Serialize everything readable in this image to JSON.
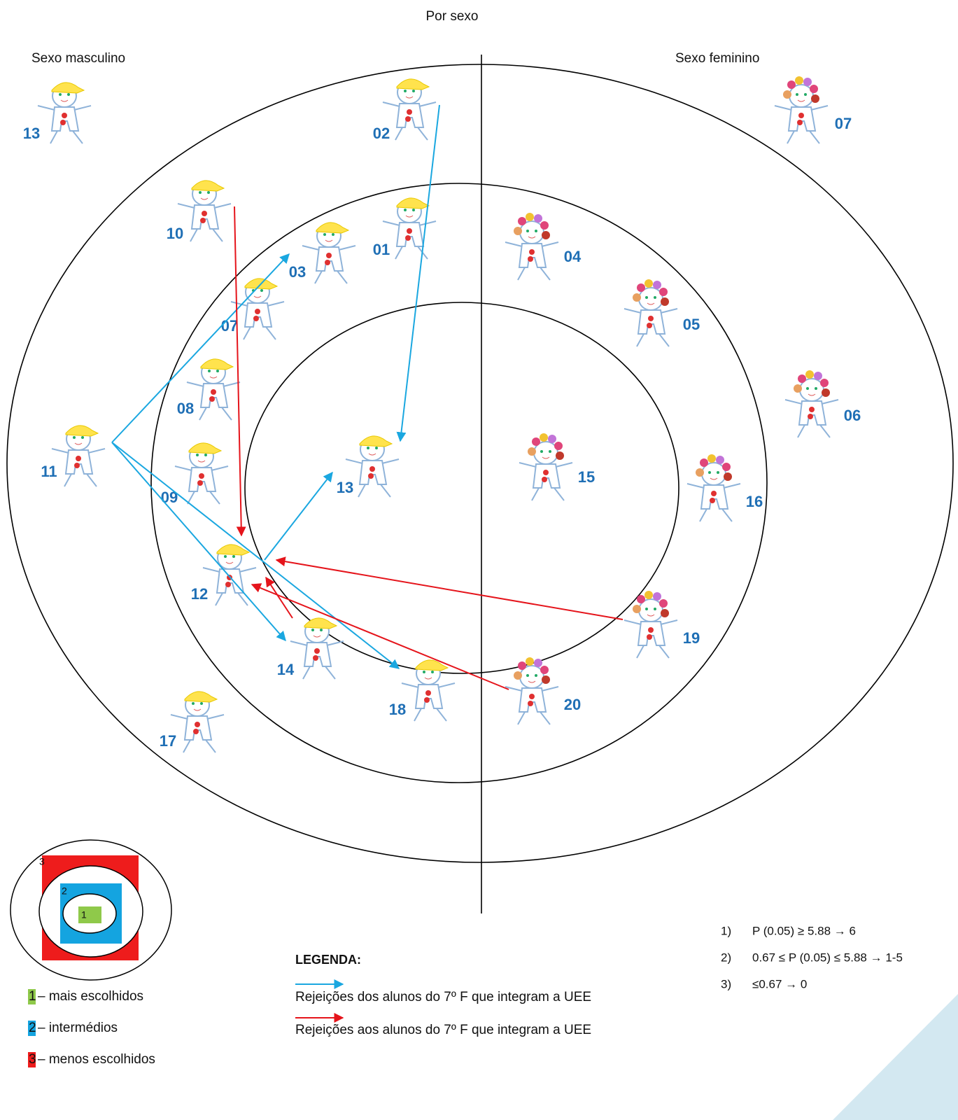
{
  "header": {
    "title": "Por sexo",
    "left": "Sexo masculino",
    "right": "Sexo feminino"
  },
  "nodes": [
    {
      "label": "13"
    },
    {
      "label": "02"
    },
    {
      "label": "10"
    },
    {
      "label": "03"
    },
    {
      "label": "01"
    },
    {
      "label": "07"
    },
    {
      "label": "08"
    },
    {
      "label": "11"
    },
    {
      "label": "09"
    },
    {
      "label": "13"
    },
    {
      "label": "12"
    },
    {
      "label": "14"
    },
    {
      "label": "18"
    },
    {
      "label": "17"
    },
    {
      "label": "07"
    },
    {
      "label": "04"
    },
    {
      "label": "05"
    },
    {
      "label": "06"
    },
    {
      "label": "15"
    },
    {
      "label": "16"
    },
    {
      "label": "19"
    },
    {
      "label": "20"
    }
  ],
  "key": {
    "levels": [
      {
        "num": "1",
        "text": "– mais escolhidos"
      },
      {
        "num": "2",
        "text": "– intermédios"
      },
      {
        "num": "3",
        "text": "– menos escolhidos"
      }
    ]
  },
  "legend": {
    "title": "LEGENDA:",
    "items": [
      {
        "text": "Rejeições dos alunos do 7º F que integram a UEE"
      },
      {
        "text": "Rejeições aos alunos do 7º F que integram a UEE"
      }
    ]
  },
  "criteria": [
    {
      "num": "1)",
      "text": "P (0.05) ≥ 5.88 → 6"
    },
    {
      "num": "2)",
      "text": "0.67 ≤ P (0.05) ≤ 5.88 → 1-5"
    },
    {
      "num": "3)",
      "text": "≤0.67 → 0"
    }
  ]
}
